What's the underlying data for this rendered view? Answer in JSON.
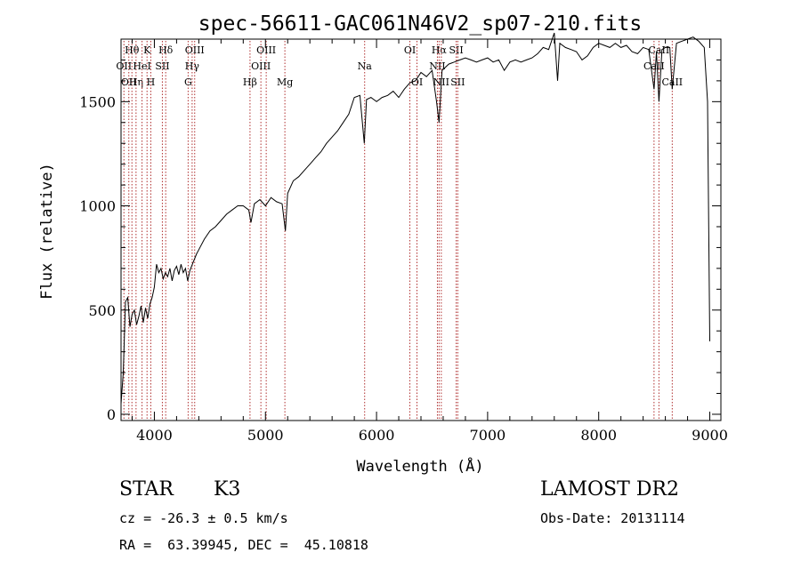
{
  "chart_data": {
    "type": "line",
    "title": "spec-56611-GAC061N46V2_sp07-210.fits",
    "xlabel": "Wavelength (Å)",
    "ylabel": "Flux (relative)",
    "xlim": [
      3700,
      9100
    ],
    "ylim": [
      -30,
      1800
    ],
    "xticks": [
      4000,
      5000,
      6000,
      7000,
      8000,
      9000
    ],
    "yticks": [
      0,
      500,
      1000,
      1500
    ],
    "grid": false,
    "line_color": "#000000",
    "marker_color": "#b03030",
    "series": [
      {
        "points": [
          [
            3700,
            50
          ],
          [
            3720,
            200
          ],
          [
            3740,
            540
          ],
          [
            3760,
            560
          ],
          [
            3780,
            420
          ],
          [
            3800,
            480
          ],
          [
            3820,
            500
          ],
          [
            3840,
            430
          ],
          [
            3860,
            470
          ],
          [
            3880,
            520
          ],
          [
            3900,
            440
          ],
          [
            3920,
            510
          ],
          [
            3940,
            460
          ],
          [
            3960,
            530
          ],
          [
            3980,
            560
          ],
          [
            4000,
            610
          ],
          [
            4020,
            720
          ],
          [
            4040,
            680
          ],
          [
            4060,
            700
          ],
          [
            4080,
            650
          ],
          [
            4100,
            680
          ],
          [
            4120,
            660
          ],
          [
            4140,
            700
          ],
          [
            4160,
            640
          ],
          [
            4180,
            690
          ],
          [
            4200,
            710
          ],
          [
            4220,
            670
          ],
          [
            4240,
            720
          ],
          [
            4260,
            680
          ],
          [
            4280,
            700
          ],
          [
            4300,
            640
          ],
          [
            4320,
            690
          ],
          [
            4350,
            730
          ],
          [
            4380,
            770
          ],
          [
            4400,
            790
          ],
          [
            4450,
            840
          ],
          [
            4500,
            880
          ],
          [
            4550,
            900
          ],
          [
            4600,
            930
          ],
          [
            4650,
            960
          ],
          [
            4700,
            980
          ],
          [
            4750,
            1000
          ],
          [
            4800,
            1000
          ],
          [
            4850,
            980
          ],
          [
            4870,
            920
          ],
          [
            4900,
            1010
          ],
          [
            4950,
            1030
          ],
          [
            5000,
            1000
          ],
          [
            5050,
            1040
          ],
          [
            5100,
            1020
          ],
          [
            5150,
            1010
          ],
          [
            5180,
            880
          ],
          [
            5200,
            1060
          ],
          [
            5250,
            1120
          ],
          [
            5300,
            1140
          ],
          [
            5350,
            1170
          ],
          [
            5400,
            1200
          ],
          [
            5450,
            1230
          ],
          [
            5500,
            1260
          ],
          [
            5550,
            1300
          ],
          [
            5600,
            1330
          ],
          [
            5650,
            1360
          ],
          [
            5700,
            1400
          ],
          [
            5750,
            1440
          ],
          [
            5800,
            1520
          ],
          [
            5850,
            1530
          ],
          [
            5890,
            1300
          ],
          [
            5910,
            1510
          ],
          [
            5950,
            1520
          ],
          [
            6000,
            1500
          ],
          [
            6050,
            1520
          ],
          [
            6100,
            1530
          ],
          [
            6150,
            1550
          ],
          [
            6200,
            1520
          ],
          [
            6250,
            1560
          ],
          [
            6300,
            1590
          ],
          [
            6350,
            1600
          ],
          [
            6400,
            1640
          ],
          [
            6450,
            1620
          ],
          [
            6500,
            1650
          ],
          [
            6540,
            1500
          ],
          [
            6563,
            1400
          ],
          [
            6590,
            1650
          ],
          [
            6650,
            1680
          ],
          [
            6700,
            1690
          ],
          [
            6750,
            1700
          ],
          [
            6800,
            1710
          ],
          [
            6850,
            1700
          ],
          [
            6900,
            1690
          ],
          [
            6950,
            1700
          ],
          [
            7000,
            1710
          ],
          [
            7050,
            1690
          ],
          [
            7100,
            1700
          ],
          [
            7150,
            1650
          ],
          [
            7200,
            1690
          ],
          [
            7250,
            1700
          ],
          [
            7300,
            1690
          ],
          [
            7350,
            1700
          ],
          [
            7400,
            1710
          ],
          [
            7450,
            1730
          ],
          [
            7500,
            1760
          ],
          [
            7550,
            1750
          ],
          [
            7600,
            1830
          ],
          [
            7630,
            1600
          ],
          [
            7650,
            1780
          ],
          [
            7700,
            1760
          ],
          [
            7750,
            1750
          ],
          [
            7800,
            1740
          ],
          [
            7850,
            1700
          ],
          [
            7900,
            1720
          ],
          [
            7950,
            1760
          ],
          [
            8000,
            1780
          ],
          [
            8050,
            1770
          ],
          [
            8100,
            1760
          ],
          [
            8150,
            1780
          ],
          [
            8200,
            1760
          ],
          [
            8250,
            1770
          ],
          [
            8300,
            1740
          ],
          [
            8350,
            1730
          ],
          [
            8400,
            1760
          ],
          [
            8450,
            1750
          ],
          [
            8498,
            1560
          ],
          [
            8520,
            1740
          ],
          [
            8542,
            1500
          ],
          [
            8570,
            1750
          ],
          [
            8600,
            1760
          ],
          [
            8640,
            1760
          ],
          [
            8662,
            1560
          ],
          [
            8700,
            1780
          ],
          [
            8750,
            1790
          ],
          [
            8800,
            1800
          ],
          [
            8850,
            1810
          ],
          [
            8900,
            1790
          ],
          [
            8950,
            1760
          ],
          [
            8980,
            1500
          ],
          [
            9000,
            350
          ]
        ]
      }
    ],
    "line_markers": [
      {
        "x": 3798,
        "labels": [
          "Hθ"
        ],
        "row": 0
      },
      {
        "x": 3726,
        "labels": [
          "OII"
        ],
        "row": 1
      },
      {
        "x": 3770,
        "labels": [
          "OII"
        ],
        "row": 2
      },
      {
        "x": 3835,
        "labels": [
          "Hη"
        ],
        "row": 2
      },
      {
        "x": 3889,
        "labels": [
          "HeI"
        ],
        "row": 1
      },
      {
        "x": 3934,
        "labels": [
          "K"
        ],
        "row": 0
      },
      {
        "x": 3968,
        "labels": [
          "H"
        ],
        "row": 2
      },
      {
        "x": 4072,
        "labels": [
          "SII"
        ],
        "row": 1
      },
      {
        "x": 4102,
        "labels": [
          "Hδ"
        ],
        "row": 0
      },
      {
        "x": 4304,
        "labels": [
          "G"
        ],
        "row": 2
      },
      {
        "x": 4340,
        "labels": [
          "Hγ"
        ],
        "row": 1
      },
      {
        "x": 4363,
        "labels": [
          "OIII"
        ],
        "row": 0
      },
      {
        "x": 4861,
        "labels": [
          "Hβ"
        ],
        "row": 2
      },
      {
        "x": 4959,
        "labels": [
          "OIII"
        ],
        "row": 1
      },
      {
        "x": 5007,
        "labels": [
          "OIII"
        ],
        "row": 0
      },
      {
        "x": 5175,
        "labels": [
          "Mg"
        ],
        "row": 2
      },
      {
        "x": 5893,
        "labels": [
          "Na"
        ],
        "row": 1
      },
      {
        "x": 6300,
        "labels": [
          "OI"
        ],
        "row": 0
      },
      {
        "x": 6364,
        "labels": [
          "OI"
        ],
        "row": 2
      },
      {
        "x": 6548,
        "labels": [
          "NII"
        ],
        "row": 1
      },
      {
        "x": 6563,
        "labels": [
          "Hα"
        ],
        "row": 0
      },
      {
        "x": 6583,
        "labels": [
          "NII"
        ],
        "row": 2
      },
      {
        "x": 6717,
        "labels": [
          "SII"
        ],
        "row": 0
      },
      {
        "x": 6731,
        "labels": [
          "SII"
        ],
        "row": 2
      },
      {
        "x": 8498,
        "labels": [
          "CaII"
        ],
        "row": 1
      },
      {
        "x": 8542,
        "labels": [
          "CaII"
        ],
        "row": 0
      },
      {
        "x": 8662,
        "labels": [
          "CaII"
        ],
        "row": 2
      }
    ]
  },
  "info": {
    "object_class": "STAR",
    "subclass": "K3",
    "survey": "LAMOST DR2",
    "redshift": "cz = -26.3 ± 0.5 km/s",
    "obs_date": "Obs-Date: 20131114",
    "coords": "RA =  63.39945, DEC =  45.10818"
  }
}
